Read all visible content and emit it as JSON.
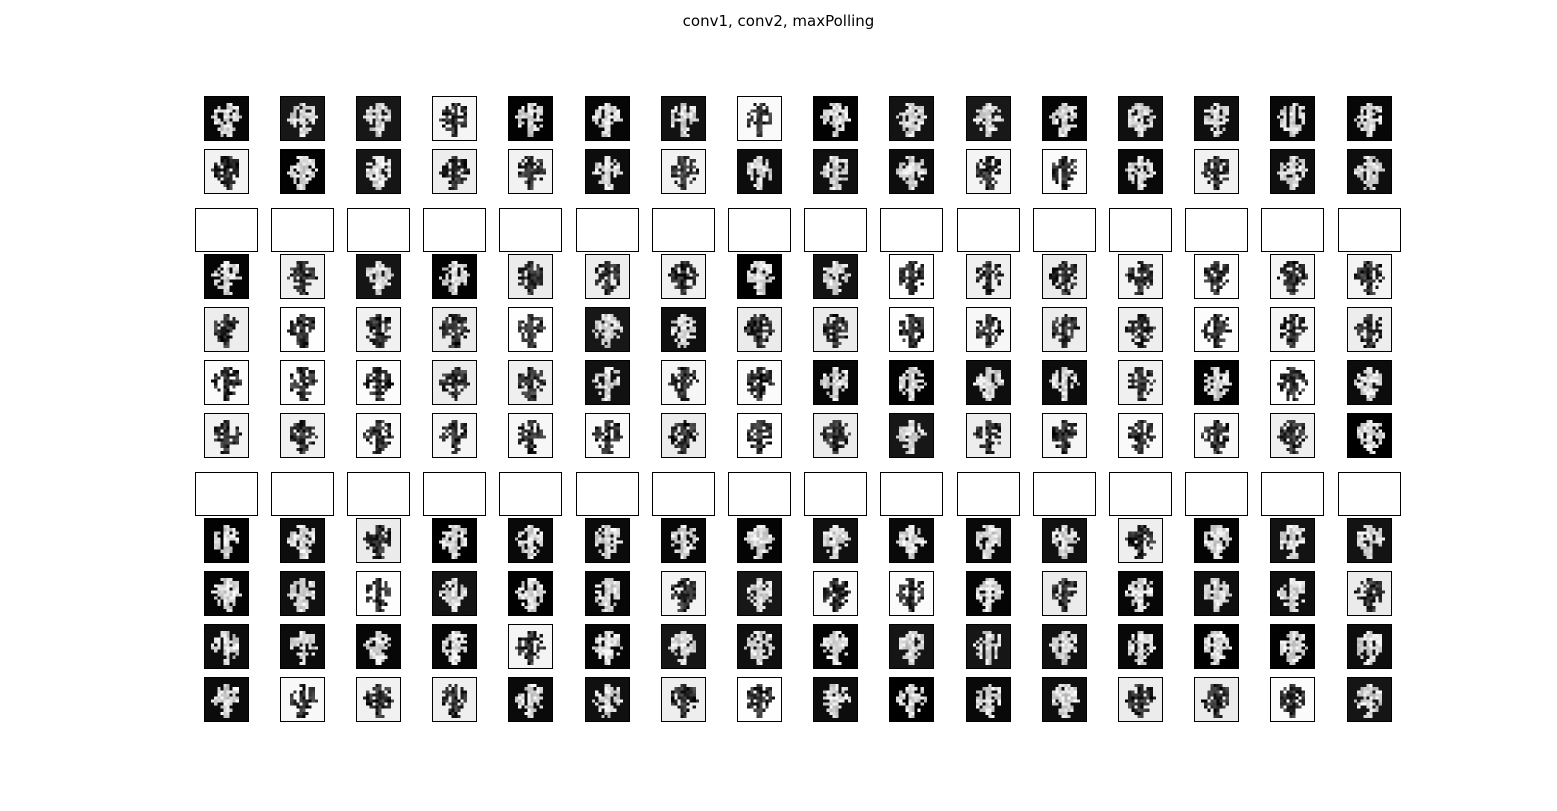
{
  "figure": {
    "title": "conv1, conv2, maxPolling"
  },
  "grid": {
    "columns": 16,
    "rows": [
      {
        "group": "conv1",
        "kind": "filled",
        "pattern": "dark"
      },
      {
        "group": "conv1",
        "kind": "filled",
        "pattern": "mixed"
      },
      {
        "group": "separator",
        "kind": "blank"
      },
      {
        "group": "conv2",
        "kind": "filled",
        "pattern": "mixed"
      },
      {
        "group": "conv2",
        "kind": "filled",
        "pattern": "light"
      },
      {
        "group": "conv2",
        "kind": "filled",
        "pattern": "mixed"
      },
      {
        "group": "conv2",
        "kind": "filled",
        "pattern": "light"
      },
      {
        "group": "separator",
        "kind": "blank"
      },
      {
        "group": "maxPolling",
        "kind": "filled",
        "pattern": "dark"
      },
      {
        "group": "maxPolling",
        "kind": "filled",
        "pattern": "mixed"
      },
      {
        "group": "maxPolling",
        "kind": "filled",
        "pattern": "dark"
      },
      {
        "group": "maxPolling",
        "kind": "filled",
        "pattern": "mixed"
      }
    ]
  },
  "colors": {
    "background": "#ffffff",
    "border": "#000000",
    "ink": "#000000"
  }
}
